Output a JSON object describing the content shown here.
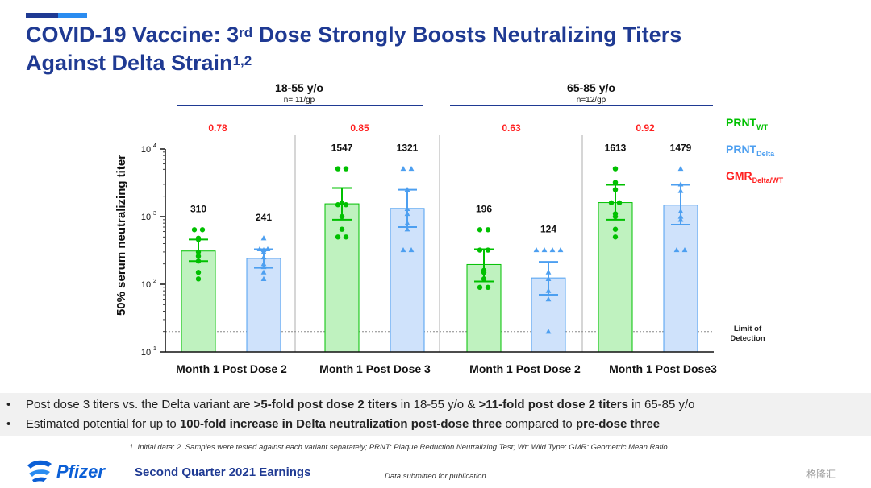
{
  "slide": {
    "title_line1_pre": "COVID-19 Vaccine: 3",
    "title_line1_sup": "rd",
    "title_line1_post": " Dose Strongly Boosts Neutralizing Titers",
    "title_line2": "Against Delta Strain",
    "title_line2_sup": "1,2",
    "bullets": [
      {
        "pre": "Post dose 3 titers vs. the Delta variant are ",
        "bold1": ">5-fold post dose 2 titers",
        "mid": " in 18-55 y/o &  ",
        "bold2": ">11-fold post dose 2 titers",
        "post": " in 65-85 y/o"
      },
      {
        "pre": "Estimated potential for up to ",
        "bold1": "100-fold increase in Delta neutralization post-dose three",
        "mid": " compared to ",
        "bold2": "pre-dose three",
        "post": ""
      }
    ],
    "bullet_marker": "•",
    "footnote": "1. Initial data; 2. Samples were tested against each variant separately; PRNT: Plaque Reduction Neutralizing Test; Wt: Wild Type; GMR: Geometric Mean Ratio",
    "company": "Pfizer",
    "earnings": "Second Quarter 2021 Earnings",
    "submitted": "Data submitted for publication",
    "watermark": "格隆汇"
  },
  "colors": {
    "title": "#1f3a93",
    "wt": "#00c000",
    "wt_fill": "#bff2bf",
    "delta": "#4d9ff0",
    "delta_fill": "#cfe2fb",
    "gmr": "#ff2020"
  },
  "chart_data": {
    "type": "bar",
    "ylabel": "50% serum neutralizing titer",
    "yscale": "log",
    "ylim": [
      10,
      10000
    ],
    "yticks": [
      {
        "base": "10",
        "exp": "1"
      },
      {
        "base": "10",
        "exp": "2"
      },
      {
        "base": "10",
        "exp": "3"
      },
      {
        "base": "10",
        "exp": "4"
      }
    ],
    "limit_of_detection": {
      "value": 20,
      "label": [
        "Limit of",
        "Detection"
      ]
    },
    "legend": [
      {
        "main": "PRNT",
        "sub": "WT",
        "color": "#00c000"
      },
      {
        "main": "PRNT",
        "sub": "Delta",
        "color": "#4d9ff0"
      },
      {
        "main": "GMR",
        "sub": "Delta/WT",
        "color": "#ff2020"
      }
    ],
    "groups": [
      {
        "label": "18-55 y/o",
        "n": "n= 11/gp"
      },
      {
        "label": "65-85 y/o",
        "n": "n=12/gp"
      }
    ],
    "timepoints": [
      {
        "label": "Month 1 Post Dose 2",
        "gmr": "0.78"
      },
      {
        "label": "Month 1 Post Dose 3",
        "gmr": "0.85"
      },
      {
        "label": "Month 1 Post Dose 2",
        "gmr": "0.63"
      },
      {
        "label": "Month 1 Post  Dose3",
        "gmr": "0.92"
      }
    ],
    "series": [
      {
        "name": "PRNT WT",
        "variant": "wt",
        "values": [
          310,
          1547,
          196,
          1613
        ],
        "ci": [
          [
            220,
            460
          ],
          [
            900,
            2650
          ],
          [
            110,
            330
          ],
          [
            900,
            2950
          ]
        ],
        "points": [
          [
            640,
            640,
            480,
            460,
            300,
            260,
            220,
            150,
            120
          ],
          [
            5100,
            5100,
            1600,
            1500,
            1500,
            1000,
            650,
            500,
            500
          ],
          [
            640,
            640,
            320,
            320,
            160,
            150,
            120,
            90,
            90
          ],
          [
            5100,
            3200,
            2500,
            1600,
            1600,
            1100,
            1000,
            650,
            500
          ]
        ]
      },
      {
        "name": "PRNT Delta",
        "variant": "delta",
        "values": [
          241,
          1321,
          124,
          1479
        ],
        "ci": [
          [
            175,
            330
          ],
          [
            700,
            2500
          ],
          [
            70,
            215
          ],
          [
            760,
            2950
          ]
        ],
        "points": [
          [
            480,
            330,
            330,
            320,
            300,
            250,
            200,
            180,
            150,
            120
          ],
          [
            5100,
            5100,
            2500,
            1300,
            1100,
            800,
            650,
            320,
            320
          ],
          [
            320,
            320,
            320,
            320,
            150,
            120,
            80,
            60,
            20
          ],
          [
            5100,
            3000,
            2400,
            1200,
            1000,
            900,
            320,
            320
          ]
        ]
      }
    ],
    "bar_labels": [
      "310",
      "1547",
      "196",
      "1613",
      "241",
      "1321",
      "124",
      "1479"
    ]
  }
}
